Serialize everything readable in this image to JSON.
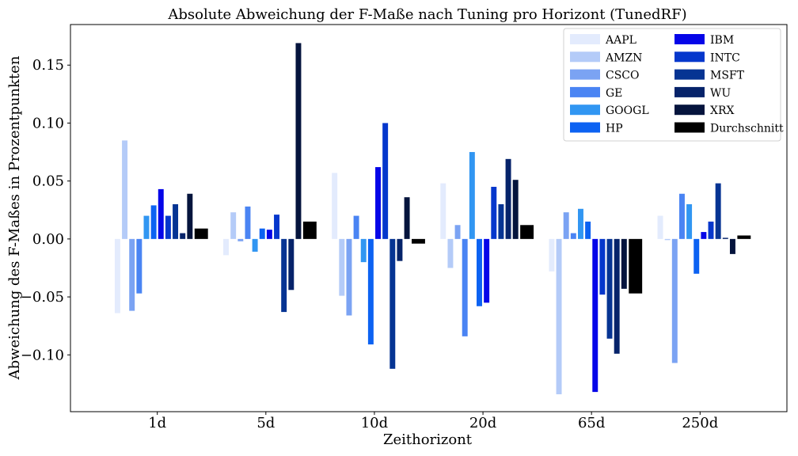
{
  "chart_data": {
    "type": "bar",
    "title": "Absolute Abweichung der F-Maße nach Tuning pro Horizont (TunedRF)",
    "xlabel": "Zeithorizont",
    "ylabel": "Abweichung des F-Maßes in Prozentpunkten",
    "categories": [
      "1d",
      "5d",
      "10d",
      "20d",
      "65d",
      "250d"
    ],
    "ylim": [
      -0.149,
      0.185
    ],
    "yticks": [
      -0.1,
      -0.05,
      0.0,
      0.05,
      0.1,
      0.15
    ],
    "ytick_labels": [
      "−0.10",
      "−0.05",
      "0.00",
      "0.05",
      "0.10",
      "0.15"
    ],
    "grid": false,
    "legend_position": "top-right",
    "series": [
      {
        "name": "AAPL",
        "color": "#e3ebfd",
        "values": [
          -0.064,
          -0.014,
          0.057,
          0.048,
          -0.028,
          0.02
        ]
      },
      {
        "name": "AMZN",
        "color": "#b4cbf8",
        "values": [
          0.085,
          0.023,
          -0.049,
          -0.025,
          -0.134,
          -0.001
        ]
      },
      {
        "name": "CSCO",
        "color": "#7ba3f3",
        "values": [
          -0.062,
          -0.002,
          -0.066,
          0.012,
          0.023,
          -0.107
        ]
      },
      {
        "name": "GE",
        "color": "#4a84f3",
        "values": [
          -0.047,
          0.028,
          0.02,
          -0.084,
          0.005,
          0.039
        ]
      },
      {
        "name": "GOOGL",
        "color": "#3196f2",
        "values": [
          0.02,
          -0.011,
          -0.02,
          0.075,
          0.026,
          0.03
        ]
      },
      {
        "name": "HP",
        "color": "#0c62f2",
        "values": [
          0.029,
          0.009,
          -0.091,
          -0.058,
          0.015,
          -0.03
        ]
      },
      {
        "name": "IBM",
        "color": "#0505e8",
        "values": [
          0.043,
          0.008,
          0.062,
          -0.055,
          -0.132,
          0.006
        ]
      },
      {
        "name": "INTC",
        "color": "#0537cc",
        "values": [
          0.02,
          0.021,
          0.1,
          0.045,
          -0.048,
          0.015
        ]
      },
      {
        "name": "MSFT",
        "color": "#063493",
        "values": [
          0.03,
          -0.063,
          -0.112,
          0.03,
          -0.086,
          0.048
        ]
      },
      {
        "name": "WU",
        "color": "#06236a",
        "values": [
          0.005,
          -0.044,
          -0.019,
          0.069,
          -0.099,
          0.001
        ]
      },
      {
        "name": "XRX",
        "color": "#05143d",
        "values": [
          0.039,
          0.169,
          0.036,
          0.051,
          -0.043,
          -0.013
        ]
      },
      {
        "name": "Durchschnitt",
        "color": "#000000",
        "values": [
          0.009,
          0.015,
          -0.004,
          0.012,
          -0.047,
          0.003
        ]
      }
    ]
  }
}
